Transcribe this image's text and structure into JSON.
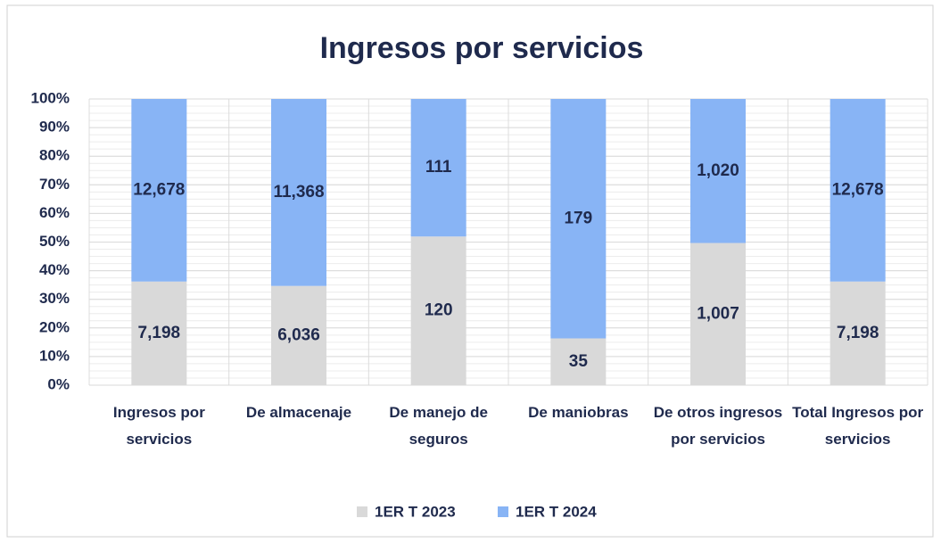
{
  "chart_data": {
    "type": "stacked_percent_bar",
    "title": "Ingresos por servicios",
    "categories": [
      "Ingresos por servicios",
      "De almacenaje",
      "De manejo de seguros",
      "De maniobras",
      "De otros ingresos por servicios",
      "Total Ingresos por servicios"
    ],
    "series": [
      {
        "name": "1ER T 2023",
        "color": "#d9d9d9",
        "values": [
          7198,
          6036,
          120,
          35,
          1007,
          7198
        ],
        "value_labels": [
          "7,198",
          "6,036",
          "120",
          "35",
          "1,007",
          "7,198"
        ]
      },
      {
        "name": "1ER T 2024",
        "color": "#88b4f5",
        "values": [
          12678,
          11368,
          111,
          179,
          1020,
          12678
        ],
        "value_labels": [
          "12,678",
          "11,368",
          "111",
          "179",
          "1,020",
          "12,678"
        ]
      }
    ],
    "ylim": [
      0,
      100
    ],
    "yticks": [
      {
        "value": 0,
        "label": "0%"
      },
      {
        "value": 10,
        "label": "10%"
      },
      {
        "value": 20,
        "label": "20%"
      },
      {
        "value": 30,
        "label": "30%"
      },
      {
        "value": 40,
        "label": "40%"
      },
      {
        "value": 50,
        "label": "50%"
      },
      {
        "value": 60,
        "label": "60%"
      },
      {
        "value": 70,
        "label": "70%"
      },
      {
        "value": 80,
        "label": "80%"
      },
      {
        "value": 90,
        "label": "90%"
      },
      {
        "value": 100,
        "label": "100%"
      }
    ],
    "grid": true,
    "legend": "bottom"
  }
}
